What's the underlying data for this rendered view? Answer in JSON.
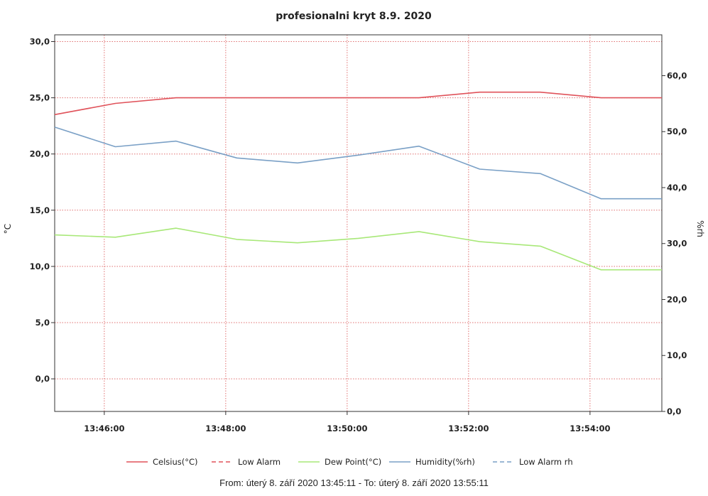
{
  "chart_data": {
    "type": "line",
    "title": "profesionalni kryt 8.9. 2020",
    "y_left_label": "°C",
    "y_right_label": "%rh",
    "x_ticks": [
      "13:46:00",
      "13:48:00",
      "13:50:00",
      "13:52:00",
      "13:54:00"
    ],
    "x_tick_minutes": [
      46,
      48,
      50,
      52,
      54
    ],
    "xlim_minutes": [
      45.183,
      55.183
    ],
    "y_left_ticks": [
      "0,0",
      "5,0",
      "10,0",
      "15,0",
      "20,0",
      "25,0",
      "30,0"
    ],
    "y_left_tick_values": [
      0,
      5,
      10,
      15,
      20,
      25,
      30
    ],
    "ylim_left": [
      -2.9,
      30.6
    ],
    "y_right_ticks": [
      "0,0",
      "10,0",
      "20,0",
      "30,0",
      "40,0",
      "50,0",
      "60,0"
    ],
    "y_right_tick_values": [
      0,
      10,
      20,
      30,
      40,
      50,
      60
    ],
    "ylim_right": [
      0,
      67.3
    ],
    "x_minutes": [
      45.183,
      46.183,
      47.183,
      48.183,
      49.183,
      50.183,
      51.183,
      52.183,
      53.183,
      54.183,
      55.183
    ],
    "grid": true,
    "legend_position": "bottom",
    "series": [
      {
        "name": "Celsius(°C)",
        "axis": "left",
        "color": "#e0525a",
        "dash": "solid",
        "values": [
          23.5,
          24.5,
          25.0,
          25.0,
          25.0,
          25.0,
          25.0,
          25.5,
          25.5,
          25.0,
          25.0
        ]
      },
      {
        "name": "Low Alarm",
        "axis": "left",
        "color": "#e0525a",
        "dash": "dashed",
        "values": []
      },
      {
        "name": "Dew Point(°C)",
        "axis": "left",
        "color": "#a8e878",
        "dash": "solid",
        "values": [
          12.8,
          12.6,
          13.4,
          12.4,
          12.1,
          12.5,
          13.1,
          12.2,
          11.8,
          9.7,
          9.7
        ]
      },
      {
        "name": "Humidity(%rh)",
        "axis": "right",
        "color": "#7aa0c6",
        "dash": "solid",
        "values": [
          50.8,
          47.3,
          48.3,
          45.3,
          44.4,
          45.8,
          47.4,
          43.3,
          42.5,
          38.0,
          38.0
        ]
      },
      {
        "name": "Low Alarm rh",
        "axis": "right",
        "color": "#7aa0c6",
        "dash": "dashed",
        "values": []
      }
    ]
  },
  "footer": "From: úterý 8. září 2020 13:45:11  -  To: úterý 8. září 2020 13:55:11"
}
